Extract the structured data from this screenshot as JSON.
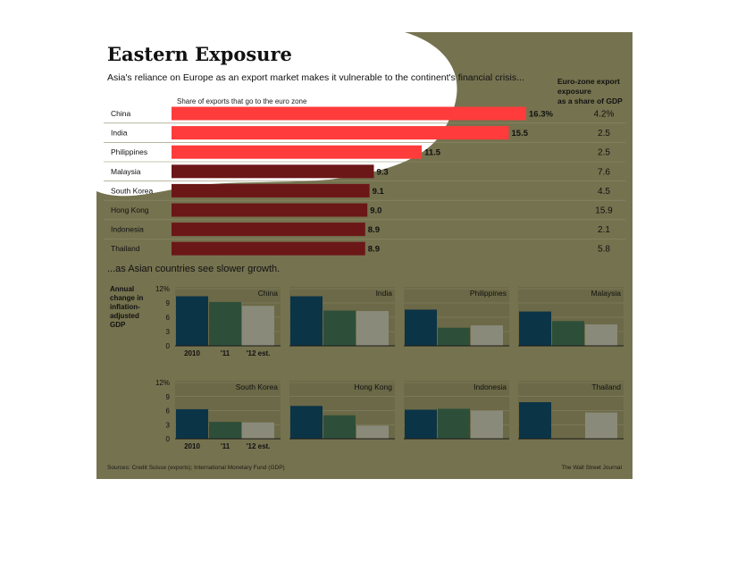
{
  "colors": {
    "background": "#75724f",
    "panel": "#6b6947",
    "bar_dark_red": "#6b1717",
    "bar_bright_red": "#ff3b3b",
    "highlight": "#ffffff",
    "series_2010": "#0b3447",
    "series_2011": "#2d4f3a",
    "series_2012": "#8a8a7a"
  },
  "chart_data": [
    {
      "type": "bar",
      "orientation": "horizontal",
      "title": "Eastern Exposure",
      "subtitle": "Asia's reliance on Europe as an export market makes it vulnerable to the continent's financial crisis...",
      "series_label": "Share of exports that go to the euro zone",
      "side_column_header": [
        "Euro-zone export",
        "exposure",
        "as a share of GDP"
      ],
      "categories": [
        "China",
        "India",
        "Philippines",
        "Malaysia",
        "South Korea",
        "Hong Kong",
        "Indonesia",
        "Thailand"
      ],
      "values": [
        16.3,
        15.5,
        11.5,
        9.3,
        9.1,
        9.0,
        8.9,
        8.9
      ],
      "value_labels": [
        "16.3%",
        "15.5",
        "11.5",
        "9.3",
        "9.1",
        "9.0",
        "8.9",
        "8.9"
      ],
      "side_values": [
        "4.2%",
        "2.5",
        "2.5",
        "7.6",
        "4.5",
        "15.9",
        "2.1",
        "5.8"
      ]
    },
    {
      "type": "bar",
      "title": "...as Asian countries see slower growth.",
      "ylabel": "Annual change in inflation-adjusted GDP",
      "ylabel_lines": [
        "Annual",
        "change in",
        "inflation-",
        "adjusted",
        "GDP"
      ],
      "yticks": [
        "12%",
        "9",
        "6",
        "3",
        "0"
      ],
      "ylim": [
        0,
        12
      ],
      "categories": [
        "2010",
        "'11",
        "'12 est."
      ],
      "panels": [
        {
          "name": "China",
          "values": [
            10.4,
            9.2,
            8.4
          ]
        },
        {
          "name": "India",
          "values": [
            10.4,
            7.4,
            7.3
          ]
        },
        {
          "name": "Philippines",
          "values": [
            7.6,
            3.8,
            4.3
          ]
        },
        {
          "name": "Malaysia",
          "values": [
            7.2,
            5.2,
            4.5
          ]
        },
        {
          "name": "South Korea",
          "values": [
            6.3,
            3.6,
            3.5
          ]
        },
        {
          "name": "Hong Kong",
          "values": [
            7.0,
            5.0,
            2.8
          ]
        },
        {
          "name": "Indonesia",
          "values": [
            6.2,
            6.4,
            6.0
          ]
        },
        {
          "name": "Thailand",
          "values": [
            7.8,
            0.1,
            5.6
          ]
        }
      ]
    }
  ],
  "footer": {
    "sources": "Sources: Credit Suisse (exports); International Monetary Fund (GDP)",
    "credit": "The Wall Street Journal"
  }
}
